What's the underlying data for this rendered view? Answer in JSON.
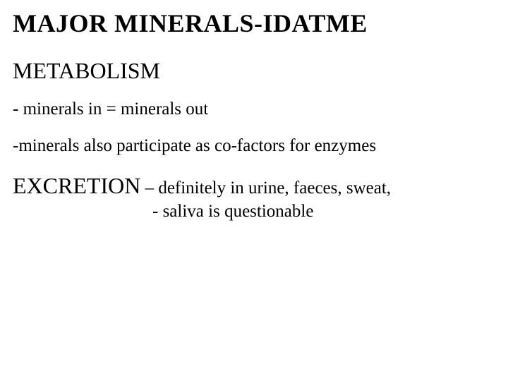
{
  "title": "MAJOR MINERALS-IDATME",
  "section_metabolism": {
    "heading": "METABOLISM",
    "line1": "- minerals in = minerals out",
    "line2": "-minerals also participate as co-factors for enzymes"
  },
  "section_excretion": {
    "heading": "EXCRETION",
    "line1_tail": " – definitely in urine, faeces, sweat,",
    "line2": "- saliva is questionable"
  }
}
